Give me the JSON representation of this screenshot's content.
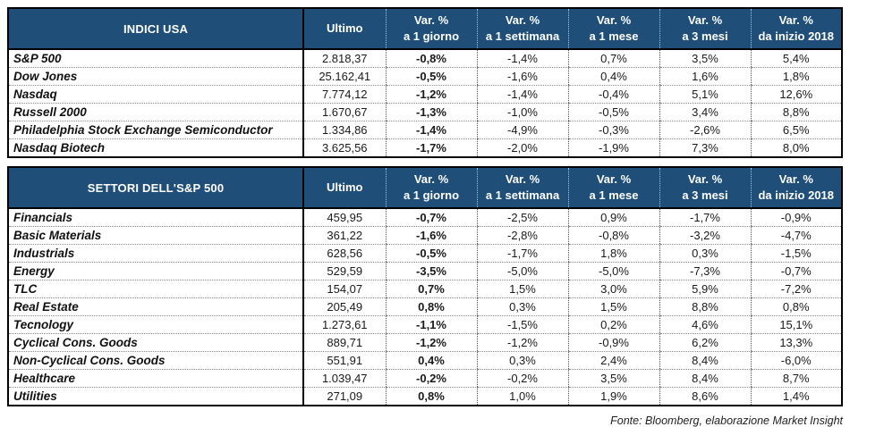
{
  "colors": {
    "header_bg": "#1F4E79",
    "header_text": "#FFFFFF",
    "border": "#000000"
  },
  "footer": "Fonte: Bloomberg, elaborazione Market Insight",
  "tables": [
    {
      "title": "INDICI USA",
      "columns": [
        {
          "line1": "Ultimo",
          "line2": ""
        },
        {
          "line1": "Var. %",
          "line2": "a 1 giorno"
        },
        {
          "line1": "Var. %",
          "line2": "a 1 settimana"
        },
        {
          "line1": "Var. %",
          "line2": "a 1 mese"
        },
        {
          "line1": "Var. %",
          "line2": "a 3 mesi"
        },
        {
          "line1": "Var. %",
          "line2": "da inizio 2018"
        }
      ],
      "rows": [
        {
          "name": "S&P 500",
          "values": [
            "2.818,37",
            "-0,8%",
            "-1,4%",
            "0,7%",
            "3,5%",
            "5,4%"
          ]
        },
        {
          "name": "Dow Jones",
          "values": [
            "25.162,41",
            "-0,5%",
            "-1,6%",
            "0,4%",
            "1,6%",
            "1,8%"
          ]
        },
        {
          "name": "Nasdaq",
          "values": [
            "7.774,12",
            "-1,2%",
            "-1,4%",
            "-0,4%",
            "5,1%",
            "12,6%"
          ]
        },
        {
          "name": "Russell 2000",
          "values": [
            "1.670,67",
            "-1,3%",
            "-1,0%",
            "-0,5%",
            "3,4%",
            "8,8%"
          ]
        },
        {
          "name": "Philadelphia Stock Exchange Semiconductor",
          "values": [
            "1.334,86",
            "-1,4%",
            "-4,9%",
            "-0,3%",
            "-2,6%",
            "6,5%"
          ]
        },
        {
          "name": "Nasdaq Biotech",
          "values": [
            "3.625,56",
            "-1,7%",
            "-2,0%",
            "-1,9%",
            "7,3%",
            "8,0%"
          ]
        }
      ]
    },
    {
      "title": "SETTORI DELL'S&P 500",
      "columns": [
        {
          "line1": "Ultimo",
          "line2": ""
        },
        {
          "line1": "Var. %",
          "line2": "a 1 giorno"
        },
        {
          "line1": "Var. %",
          "line2": "a 1 settimana"
        },
        {
          "line1": "Var. %",
          "line2": "a 1 mese"
        },
        {
          "line1": "Var. %",
          "line2": "a 3 mesi"
        },
        {
          "line1": "Var. %",
          "line2": "da inizio 2018"
        }
      ],
      "rows": [
        {
          "name": "Financials",
          "values": [
            "459,95",
            "-0,7%",
            "-2,5%",
            "0,9%",
            "-1,7%",
            "-0,9%"
          ]
        },
        {
          "name": "Basic Materials",
          "values": [
            "361,22",
            "-1,6%",
            "-2,8%",
            "-0,8%",
            "-3,2%",
            "-4,7%"
          ]
        },
        {
          "name": "Industrials",
          "values": [
            "628,56",
            "-0,5%",
            "-1,7%",
            "1,8%",
            "0,3%",
            "-1,5%"
          ]
        },
        {
          "name": "Energy",
          "values": [
            "529,59",
            "-3,5%",
            "-5,0%",
            "-5,0%",
            "-7,3%",
            "-0,7%"
          ]
        },
        {
          "name": "TLC",
          "values": [
            "154,07",
            "0,7%",
            "1,5%",
            "3,0%",
            "5,9%",
            "-7,2%"
          ]
        },
        {
          "name": "Real Estate",
          "values": [
            "205,49",
            "0,8%",
            "0,3%",
            "1,5%",
            "8,8%",
            "0,8%"
          ]
        },
        {
          "name": "Tecnology",
          "values": [
            "1.273,61",
            "-1,1%",
            "-1,5%",
            "0,2%",
            "4,6%",
            "15,1%"
          ]
        },
        {
          "name": "Cyclical Cons. Goods",
          "values": [
            "889,71",
            "-1,2%",
            "-1,2%",
            "-0,9%",
            "6,2%",
            "13,3%"
          ]
        },
        {
          "name": "Non-Cyclical Cons. Goods",
          "values": [
            "551,91",
            "0,4%",
            "0,3%",
            "2,4%",
            "8,4%",
            "-6,0%"
          ]
        },
        {
          "name": "Healthcare",
          "values": [
            "1.039,47",
            "-0,2%",
            "-0,2%",
            "3,5%",
            "8,4%",
            "8,7%"
          ]
        },
        {
          "name": "Utilities",
          "values": [
            "271,09",
            "0,8%",
            "1,0%",
            "1,9%",
            "8,6%",
            "1,4%"
          ]
        }
      ]
    }
  ]
}
